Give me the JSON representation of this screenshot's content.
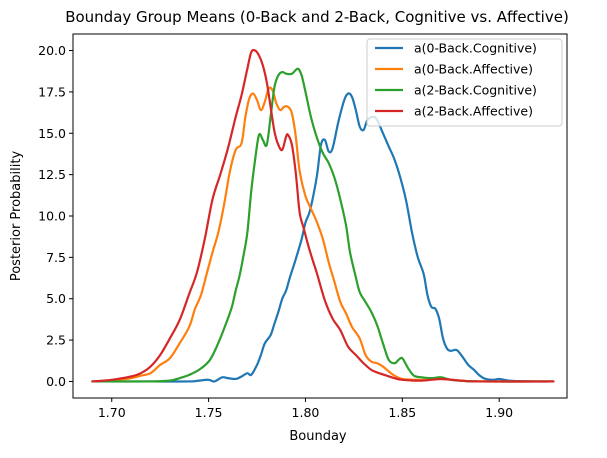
{
  "chart_data": {
    "type": "line",
    "title": "Bounday Group Means (0-Back and 2-Back, Cognitive vs. Affective)",
    "xlabel": "Bounday",
    "ylabel": "Posterior Probability",
    "xlim": [
      1.68,
      1.935
    ],
    "ylim": [
      -1.0,
      21.0
    ],
    "xticks": [
      1.7,
      1.75,
      1.8,
      1.85,
      1.9
    ],
    "xtick_labels": [
      "1.70",
      "1.75",
      "1.80",
      "1.85",
      "1.90"
    ],
    "yticks": [
      0.0,
      2.5,
      5.0,
      7.5,
      10.0,
      12.5,
      15.0,
      17.5,
      20.0
    ],
    "ytick_labels": [
      "0.0",
      "2.5",
      "5.0",
      "7.5",
      "10.0",
      "12.5",
      "15.0",
      "17.5",
      "20.0"
    ],
    "grid": false,
    "legend_position": "upper right",
    "series": [
      {
        "name": "a(0-Back.Cognitive)",
        "color": "#1f77b4",
        "points": [
          [
            1.69,
            0
          ],
          [
            1.7,
            0
          ],
          [
            1.72,
            0
          ],
          [
            1.74,
            0
          ],
          [
            1.745,
            0.05
          ],
          [
            1.75,
            0.1
          ],
          [
            1.753,
            0
          ],
          [
            1.757,
            0.25
          ],
          [
            1.76,
            0.2
          ],
          [
            1.764,
            0.15
          ],
          [
            1.767,
            0.3
          ],
          [
            1.77,
            0.5
          ],
          [
            1.772,
            0.4
          ],
          [
            1.775,
            1.0
          ],
          [
            1.777,
            1.6
          ],
          [
            1.779,
            2.3
          ],
          [
            1.782,
            2.8
          ],
          [
            1.784,
            3.5
          ],
          [
            1.786,
            4.2
          ],
          [
            1.788,
            5.0
          ],
          [
            1.79,
            5.5
          ],
          [
            1.792,
            6.3
          ],
          [
            1.795,
            7.4
          ],
          [
            1.798,
            8.6
          ],
          [
            1.8,
            9.6
          ],
          [
            1.802,
            10.2
          ],
          [
            1.804,
            11.2
          ],
          [
            1.806,
            12.5
          ],
          [
            1.808,
            14.3
          ],
          [
            1.81,
            14.6
          ],
          [
            1.812,
            13.9
          ],
          [
            1.814,
            14.1
          ],
          [
            1.817,
            15.7
          ],
          [
            1.82,
            17.0
          ],
          [
            1.822,
            17.4
          ],
          [
            1.824,
            17.2
          ],
          [
            1.826,
            16.4
          ],
          [
            1.828,
            15.4
          ],
          [
            1.83,
            15.2
          ],
          [
            1.832,
            15.8
          ],
          [
            1.835,
            16.0
          ],
          [
            1.837,
            15.8
          ],
          [
            1.84,
            15.0
          ],
          [
            1.843,
            14.2
          ],
          [
            1.846,
            13.4
          ],
          [
            1.849,
            12.3
          ],
          [
            1.852,
            10.9
          ],
          [
            1.855,
            9.0
          ],
          [
            1.858,
            7.5
          ],
          [
            1.861,
            6.5
          ],
          [
            1.863,
            5.2
          ],
          [
            1.865,
            4.5
          ],
          [
            1.867,
            4.4
          ],
          [
            1.869,
            3.8
          ],
          [
            1.871,
            2.6
          ],
          [
            1.873,
            2.0
          ],
          [
            1.875,
            1.85
          ],
          [
            1.878,
            1.9
          ],
          [
            1.881,
            1.5
          ],
          [
            1.884,
            1.0
          ],
          [
            1.887,
            0.7
          ],
          [
            1.89,
            0.35
          ],
          [
            1.893,
            0.15
          ],
          [
            1.897,
            0.1
          ],
          [
            1.9,
            0.15
          ],
          [
            1.905,
            0.05
          ],
          [
            1.91,
            0.02
          ],
          [
            1.92,
            0.0
          ],
          [
            1.928,
            0.0
          ]
        ]
      },
      {
        "name": "a(0-Back.Affective)",
        "color": "#ff7f0e",
        "points": [
          [
            1.69,
            0
          ],
          [
            1.7,
            0.05
          ],
          [
            1.71,
            0.2
          ],
          [
            1.715,
            0.35
          ],
          [
            1.72,
            0.5
          ],
          [
            1.725,
            1.0
          ],
          [
            1.73,
            1.4
          ],
          [
            1.735,
            2.3
          ],
          [
            1.74,
            3.3
          ],
          [
            1.743,
            4.4
          ],
          [
            1.746,
            5.2
          ],
          [
            1.749,
            6.5
          ],
          [
            1.752,
            7.8
          ],
          [
            1.755,
            9.0
          ],
          [
            1.758,
            10.7
          ],
          [
            1.761,
            12.7
          ],
          [
            1.764,
            14.0
          ],
          [
            1.767,
            14.4
          ],
          [
            1.769,
            16.0
          ],
          [
            1.771,
            17.1
          ],
          [
            1.773,
            17.4
          ],
          [
            1.775,
            17.0
          ],
          [
            1.777,
            16.4
          ],
          [
            1.779,
            16.9
          ],
          [
            1.781,
            17.7
          ],
          [
            1.783,
            17.6
          ],
          [
            1.785,
            16.8
          ],
          [
            1.787,
            16.4
          ],
          [
            1.789,
            16.6
          ],
          [
            1.791,
            16.6
          ],
          [
            1.793,
            16.2
          ],
          [
            1.795,
            14.8
          ],
          [
            1.797,
            12.7
          ],
          [
            1.8,
            11.2
          ],
          [
            1.803,
            10.4
          ],
          [
            1.806,
            9.6
          ],
          [
            1.809,
            8.6
          ],
          [
            1.812,
            7.2
          ],
          [
            1.815,
            6.0
          ],
          [
            1.818,
            4.8
          ],
          [
            1.821,
            4.1
          ],
          [
            1.824,
            3.3
          ],
          [
            1.828,
            2.6
          ],
          [
            1.831,
            1.6
          ],
          [
            1.834,
            1.2
          ],
          [
            1.837,
            1.1
          ],
          [
            1.84,
            0.9
          ],
          [
            1.843,
            0.6
          ],
          [
            1.846,
            0.35
          ],
          [
            1.85,
            0.15
          ],
          [
            1.86,
            0.1
          ],
          [
            1.87,
            0.15
          ],
          [
            1.88,
            0.05
          ],
          [
            1.89,
            0.0
          ],
          [
            1.928,
            0.0
          ]
        ]
      },
      {
        "name": "a(2-Back.Cognitive)",
        "color": "#2ca02c",
        "points": [
          [
            1.69,
            0
          ],
          [
            1.72,
            0
          ],
          [
            1.73,
            0.05
          ],
          [
            1.735,
            0.2
          ],
          [
            1.74,
            0.4
          ],
          [
            1.745,
            0.7
          ],
          [
            1.75,
            1.2
          ],
          [
            1.753,
            1.8
          ],
          [
            1.756,
            2.6
          ],
          [
            1.759,
            3.5
          ],
          [
            1.762,
            4.5
          ],
          [
            1.764,
            5.5
          ],
          [
            1.766,
            6.4
          ],
          [
            1.768,
            7.6
          ],
          [
            1.77,
            9.0
          ],
          [
            1.772,
            11.5
          ],
          [
            1.774,
            13.4
          ],
          [
            1.776,
            14.9
          ],
          [
            1.778,
            14.6
          ],
          [
            1.78,
            14.3
          ],
          [
            1.782,
            16.0
          ],
          [
            1.784,
            17.8
          ],
          [
            1.786,
            18.5
          ],
          [
            1.788,
            18.7
          ],
          [
            1.79,
            18.6
          ],
          [
            1.793,
            18.6
          ],
          [
            1.796,
            18.9
          ],
          [
            1.798,
            18.5
          ],
          [
            1.8,
            17.5
          ],
          [
            1.803,
            15.9
          ],
          [
            1.806,
            14.7
          ],
          [
            1.809,
            13.8
          ],
          [
            1.812,
            13.2
          ],
          [
            1.815,
            12.3
          ],
          [
            1.818,
            11.0
          ],
          [
            1.821,
            9.4
          ],
          [
            1.823,
            7.8
          ],
          [
            1.826,
            6.3
          ],
          [
            1.828,
            5.4
          ],
          [
            1.831,
            4.8
          ],
          [
            1.834,
            4.2
          ],
          [
            1.837,
            3.4
          ],
          [
            1.84,
            2.3
          ],
          [
            1.843,
            1.3
          ],
          [
            1.846,
            1.1
          ],
          [
            1.848,
            1.3
          ],
          [
            1.85,
            1.4
          ],
          [
            1.853,
            0.8
          ],
          [
            1.856,
            0.35
          ],
          [
            1.86,
            0.25
          ],
          [
            1.865,
            0.2
          ],
          [
            1.87,
            0.25
          ],
          [
            1.875,
            0.1
          ],
          [
            1.88,
            0.05
          ],
          [
            1.89,
            0.0
          ],
          [
            1.928,
            0.0
          ]
        ]
      },
      {
        "name": "a(2-Back.Affective)",
        "color": "#d62728",
        "points": [
          [
            1.69,
            0
          ],
          [
            1.7,
            0.1
          ],
          [
            1.71,
            0.3
          ],
          [
            1.715,
            0.5
          ],
          [
            1.72,
            0.9
          ],
          [
            1.725,
            1.6
          ],
          [
            1.73,
            2.6
          ],
          [
            1.735,
            3.7
          ],
          [
            1.74,
            5.3
          ],
          [
            1.744,
            6.6
          ],
          [
            1.748,
            8.6
          ],
          [
            1.752,
            11.0
          ],
          [
            1.756,
            12.5
          ],
          [
            1.76,
            14.1
          ],
          [
            1.764,
            16.0
          ],
          [
            1.767,
            17.3
          ],
          [
            1.77,
            18.9
          ],
          [
            1.772,
            19.9
          ],
          [
            1.774,
            20.0
          ],
          [
            1.776,
            19.7
          ],
          [
            1.778,
            19.1
          ],
          [
            1.78,
            18.1
          ],
          [
            1.782,
            16.6
          ],
          [
            1.784,
            15.1
          ],
          [
            1.786,
            14.3
          ],
          [
            1.788,
            14.0
          ],
          [
            1.79,
            14.8
          ],
          [
            1.791,
            14.9
          ],
          [
            1.793,
            14.3
          ],
          [
            1.795,
            12.6
          ],
          [
            1.797,
            10.2
          ],
          [
            1.799,
            9.3
          ],
          [
            1.801,
            8.4
          ],
          [
            1.803,
            7.6
          ],
          [
            1.806,
            6.5
          ],
          [
            1.81,
            4.9
          ],
          [
            1.814,
            3.8
          ],
          [
            1.818,
            3.1
          ],
          [
            1.822,
            2.1
          ],
          [
            1.826,
            1.6
          ],
          [
            1.83,
            1.1
          ],
          [
            1.834,
            0.7
          ],
          [
            1.838,
            0.5
          ],
          [
            1.842,
            0.35
          ],
          [
            1.846,
            0.2
          ],
          [
            1.85,
            0.1
          ],
          [
            1.86,
            0.05
          ],
          [
            1.87,
            0.15
          ],
          [
            1.88,
            0.05
          ],
          [
            1.89,
            0.0
          ],
          [
            1.928,
            0.0
          ]
        ]
      }
    ]
  }
}
